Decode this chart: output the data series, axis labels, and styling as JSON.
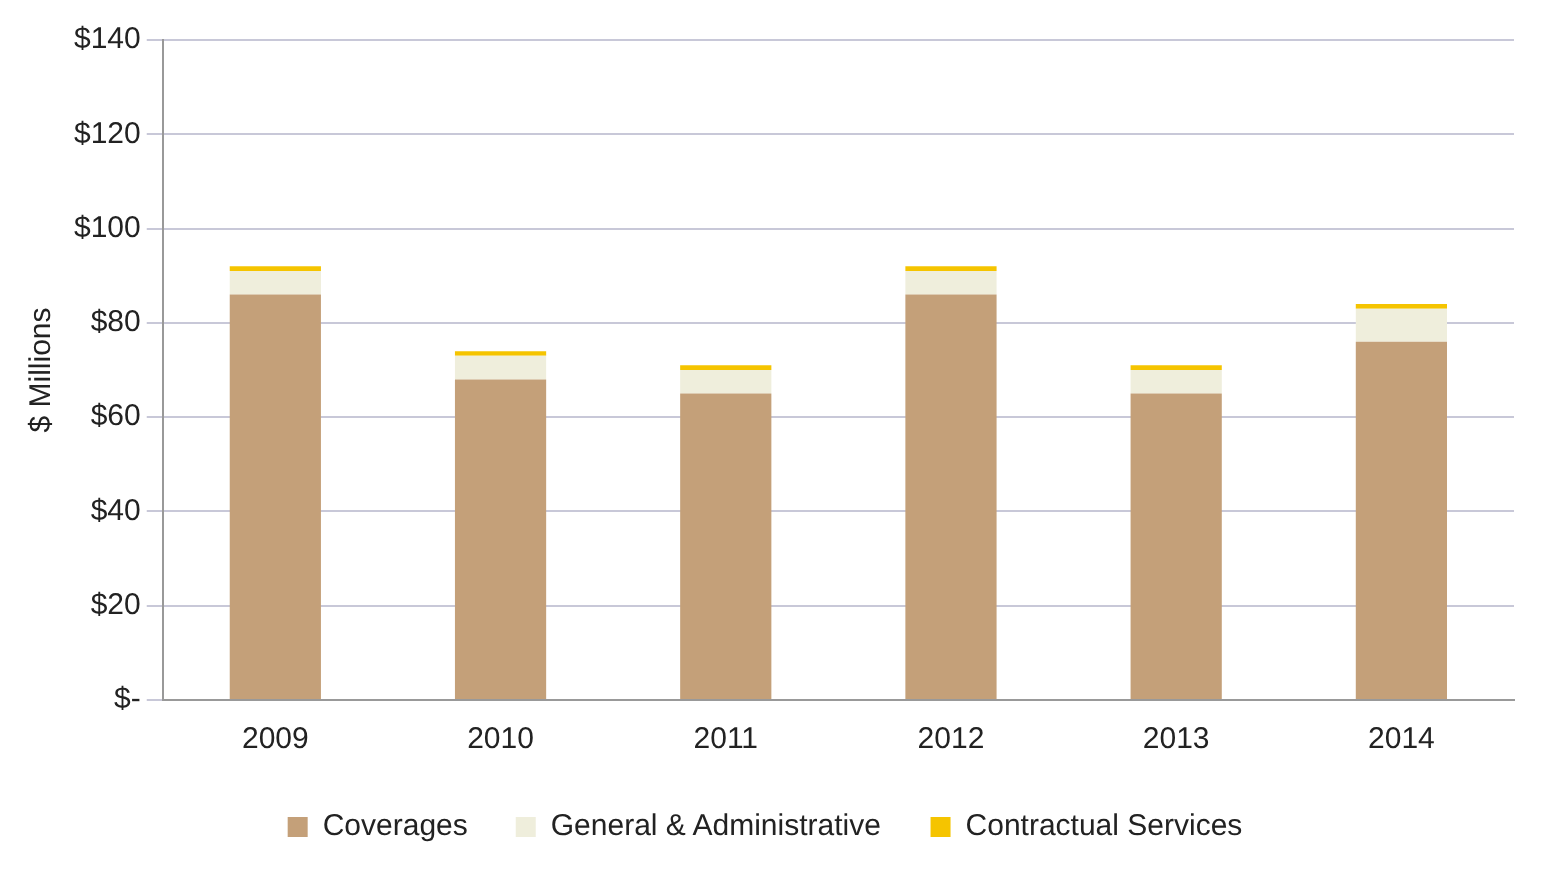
{
  "chart_data": {
    "type": "bar",
    "stacked": true,
    "ylabel": "$ Millions",
    "categories": [
      "2009",
      "2010",
      "2011",
      "2012",
      "2013",
      "2014"
    ],
    "series": [
      {
        "name": "Coverages",
        "color": "#c4a079",
        "values": [
          86,
          68,
          65,
          86,
          65,
          76
        ]
      },
      {
        "name": "General & Administrative",
        "color": "#efeedc",
        "values": [
          5,
          5,
          5,
          5,
          5,
          7
        ]
      },
      {
        "name": "Contractual Services",
        "color": "#f5c400",
        "values": [
          1,
          1,
          1,
          1,
          1,
          1
        ]
      }
    ],
    "ylim": [
      0,
      140
    ],
    "yticks": [
      {
        "value": 0,
        "label": "$-"
      },
      {
        "value": 20,
        "label": "$20"
      },
      {
        "value": 40,
        "label": "$40"
      },
      {
        "value": 60,
        "label": "$60"
      },
      {
        "value": 80,
        "label": "$80"
      },
      {
        "value": 100,
        "label": "$100"
      },
      {
        "value": 120,
        "label": "$120"
      },
      {
        "value": 140,
        "label": "$140"
      }
    ],
    "grid": "y",
    "legend": "bottom"
  }
}
